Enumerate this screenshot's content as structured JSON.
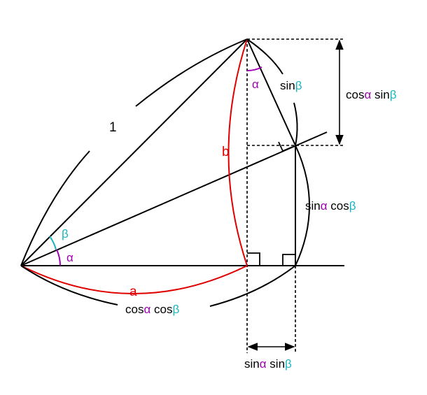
{
  "colors": {
    "line": "#000000",
    "red": "#e00000",
    "magenta": "#a000b4",
    "teal": "#1ab4be"
  },
  "labels": {
    "one": "1",
    "a": "a",
    "b": "b",
    "alpha_origin": "α",
    "beta_origin": "β",
    "alpha_apex": "α",
    "sin_beta": {
      "prefix": "sin",
      "greek": "β"
    },
    "cos_alpha_sin_beta": {
      "p1": "cos",
      "g1": "α",
      "p2": " sin",
      "g2": "β"
    },
    "sin_alpha_cos_beta": {
      "p1": "sin",
      "g1": "α",
      "p2": " cos",
      "g2": "β"
    },
    "cos_alpha_cos_beta": {
      "p1": "cos",
      "g1": "α",
      "p2": " cos",
      "g2": "β"
    },
    "sin_alpha_sin_beta": {
      "p1": "sin",
      "g1": "α",
      "p2": " sin",
      "g2": "β"
    }
  }
}
